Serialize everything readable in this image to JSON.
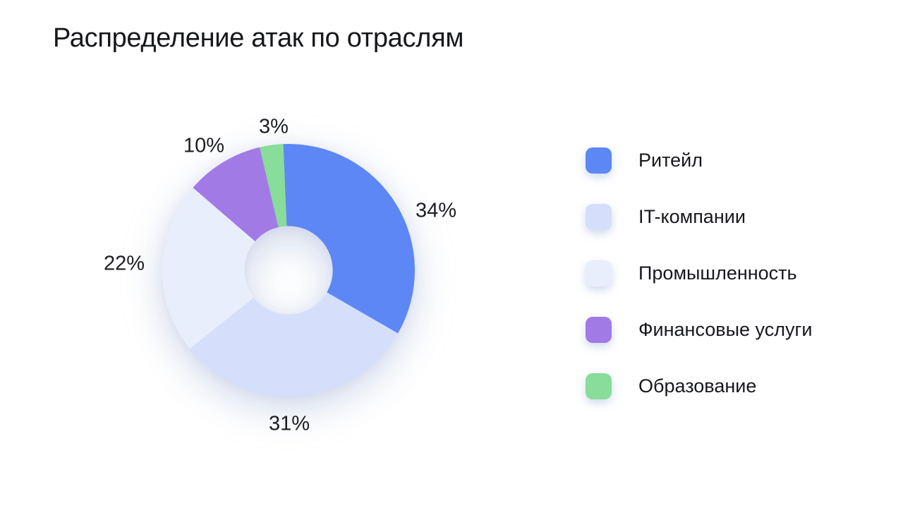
{
  "title": "Распределение атак по отраслям",
  "chart_data": {
    "type": "pie",
    "subtype": "donut",
    "title": "Распределение атак по отраслям",
    "unit": "%",
    "start_angle_deg": -2.4,
    "direction": "clockwise",
    "donut_hole_ratio": 0.35,
    "legend_position": "right",
    "grid": false,
    "categories": [
      "Ритейл",
      "IT-компании",
      "Промышленность",
      "Финансовые услуги",
      "Образование"
    ],
    "values": [
      34,
      31,
      22,
      10,
      3
    ],
    "labels": [
      "34%",
      "31%",
      "22%",
      "10%",
      "3%"
    ],
    "colors": [
      "#5c87f4",
      "#d5dffb",
      "#e9eefc",
      "#a17ae6",
      "#87dd99"
    ]
  },
  "legend": {
    "items": [
      {
        "label": "Ритейл",
        "color": "#5c87f4"
      },
      {
        "label": "IT-компании",
        "color": "#d5dffb"
      },
      {
        "label": "Промышленность",
        "color": "#e9eefc"
      },
      {
        "label": "Финансовые услуги",
        "color": "#a17ae6"
      },
      {
        "label": "Образование",
        "color": "#87dd99"
      }
    ]
  },
  "colors": {
    "background": "#ffffff",
    "text": "#17181c",
    "shadow": "#7c91c8"
  }
}
